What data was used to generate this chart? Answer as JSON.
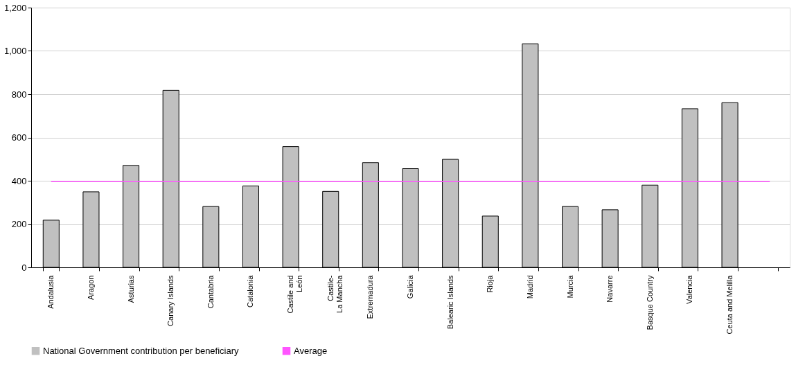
{
  "chart_data": {
    "type": "bar",
    "categories": [
      "Andalusia",
      "Aragon",
      "Asturias",
      "Canary Islands",
      "Cantabria",
      "Catalonia",
      "Castile and\nLeón",
      "Castile-\nLa Mancha",
      "Extremadura",
      "Galicia",
      "Balearic Islands",
      "Rioja",
      "Madrid",
      "Murcia",
      "Navarre",
      "Basque Country",
      "Valencia",
      "Ceuta and Melilla",
      null
    ],
    "series": [
      {
        "name": "National Government contribution per beneficiary",
        "color": "#c0c0c0",
        "values": [
          218,
          349,
          471,
          818,
          281,
          376,
          558,
          351,
          484,
          456,
          499,
          237,
          1033,
          281,
          266,
          380,
          733,
          761,
          null
        ]
      },
      {
        "name": "Average",
        "type": "line",
        "color": "#ff55ff",
        "values": [
          396,
          396,
          396,
          396,
          396,
          396,
          396,
          396,
          396,
          396,
          396,
          396,
          396,
          396,
          396,
          396,
          396,
          396,
          396
        ]
      }
    ],
    "ylim": [
      0,
      1200
    ],
    "yticks": [
      {
        "value": 0,
        "label": "0"
      },
      {
        "value": 200,
        "label": "200"
      },
      {
        "value": 400,
        "label": "400"
      },
      {
        "value": 600,
        "label": "600"
      },
      {
        "value": 800,
        "label": "800"
      },
      {
        "value": 1000,
        "label": "1,000"
      },
      {
        "value": 1200,
        "label": "1,200"
      }
    ],
    "grid": "y",
    "legend": "bottom"
  }
}
